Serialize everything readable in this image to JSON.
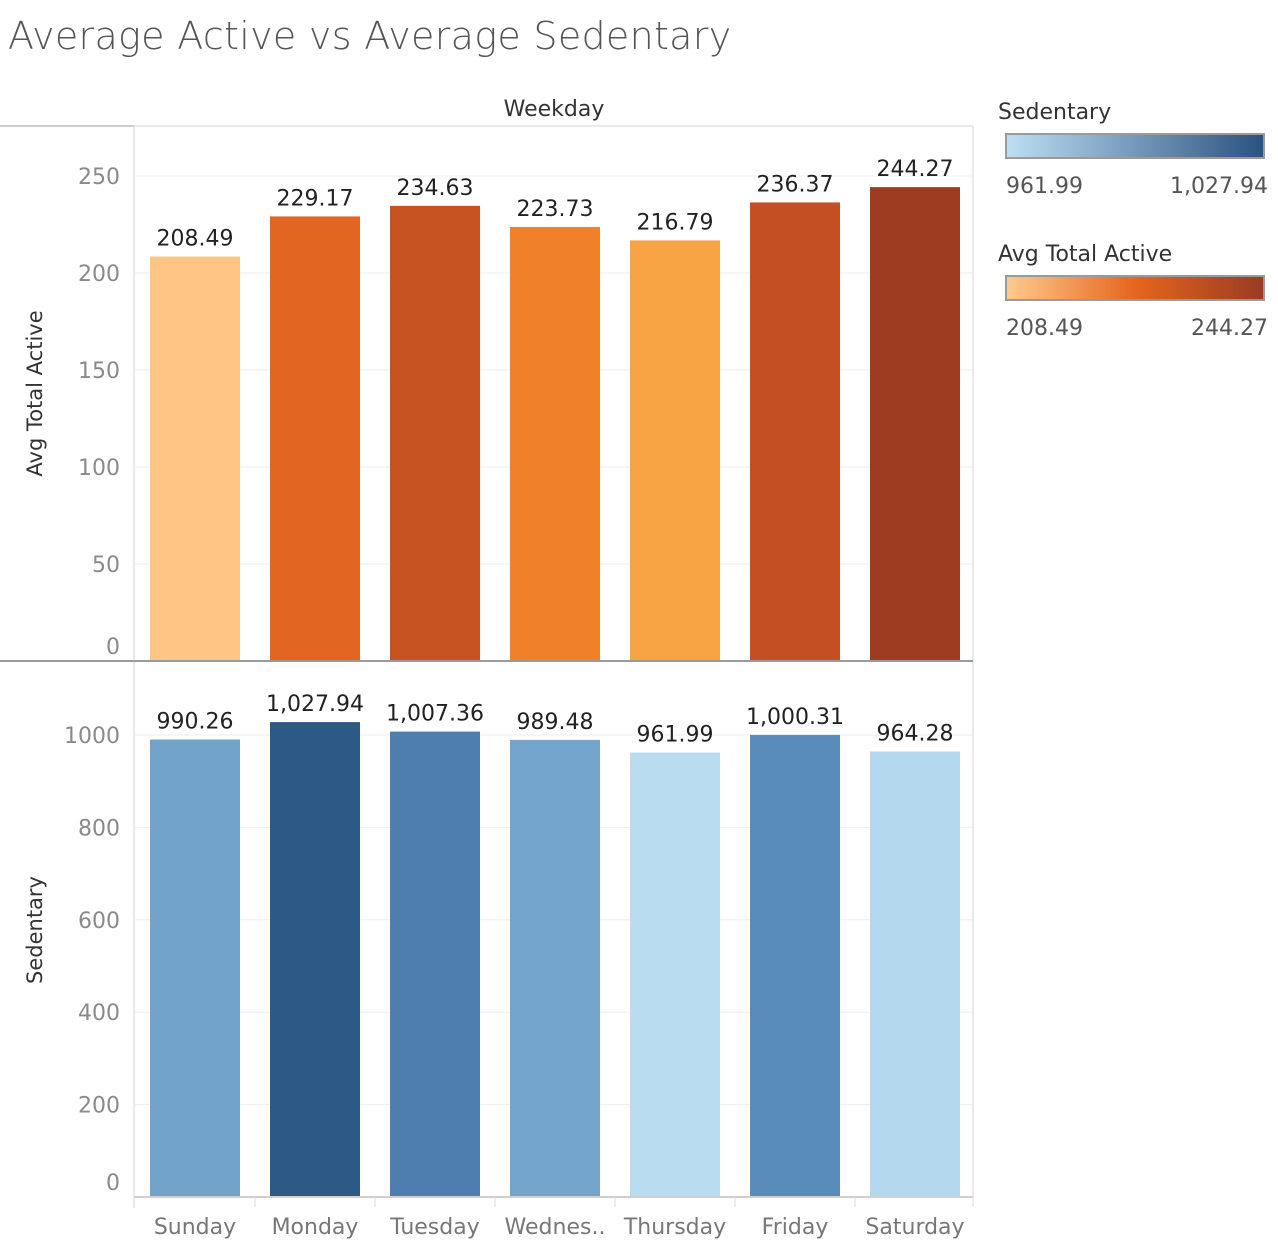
{
  "title": "Average Active vs Average Sedentary",
  "chart_data": {
    "type": "bar",
    "column_header": "Weekday",
    "categories": [
      "Sunday",
      "Monday",
      "Tuesday",
      "Wednes..",
      "Thursday",
      "Friday",
      "Saturday"
    ],
    "panels": [
      {
        "ylabel": "Avg Total Active",
        "ylim": [
          0,
          250
        ],
        "yticks": [
          0,
          50,
          100,
          150,
          200,
          250
        ],
        "values": [
          208.49,
          229.17,
          234.63,
          223.73,
          216.79,
          236.37,
          244.27
        ],
        "value_labels": [
          "208.49",
          "229.17",
          "234.63",
          "223.73",
          "216.79",
          "236.37",
          "244.27"
        ],
        "colors": [
          "#FFC585",
          "#E26521",
          "#C85322",
          "#F0802A",
          "#F6A444",
          "#C34F22",
          "#9E3C21"
        ]
      },
      {
        "ylabel": "Sedentary",
        "ylim": [
          0,
          1000
        ],
        "yticks": [
          0,
          200,
          400,
          600,
          800,
          1000
        ],
        "values": [
          990.26,
          1027.94,
          1007.36,
          989.48,
          961.99,
          1000.31,
          964.28
        ],
        "value_labels": [
          "990.26",
          "1,027.94",
          "1,007.36",
          "989.48",
          "961.99",
          "1,000.31",
          "964.28"
        ],
        "colors": [
          "#71A3CB",
          "#2C5985",
          "#4D7EAF",
          "#74A5CD",
          "#B9DCF0",
          "#5A8CBA",
          "#B4D9EF"
        ]
      }
    ],
    "grid": true,
    "legend_placement": "right"
  },
  "legends": [
    {
      "title": "Sedentary",
      "min_label": "961.99",
      "max_label": "1,027.94",
      "color_start": "#BDDEF2",
      "color_end": "#2B5380"
    },
    {
      "title": "Avg Total Active",
      "min_label": "208.49",
      "max_label": "244.27",
      "color_start": "#FFC98C",
      "color_mid": "#E5661E",
      "color_end": "#9B3B22"
    }
  ]
}
